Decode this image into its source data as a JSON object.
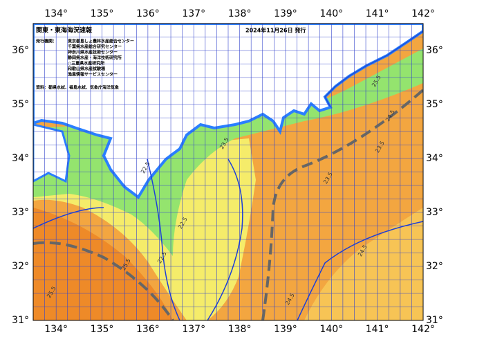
{
  "header": {
    "title": "関東・東海海況速報",
    "date": "2024年11月26日 発行",
    "issuer_label": "発行機関：",
    "issuers": [
      "東京都島しょ農林水産総合センター",
      "千葉県水産総合研究センター",
      "神奈川県水産技術センター",
      "静岡県水産・海洋技術研究所",
      "○三重県水産研究所",
      "和歌山県水産試験場",
      "漁業情報サービスセンター"
    ],
    "source": "資料：都県水試、福島水試、気象庁海洋気象"
  },
  "axes": {
    "longitude_labels": [
      "134°",
      "135°",
      "136°",
      "137°",
      "138°",
      "139°",
      "140°",
      "141°",
      "142°"
    ],
    "latitude_labels": [
      "36°",
      "35°",
      "34°",
      "33°",
      "32°",
      "31°"
    ]
  },
  "contour_labels": [
    "23.5",
    "22.5",
    "24.5",
    "25.5",
    "22.5",
    "23.5",
    "24.5",
    "25.5",
    "23.5",
    "24.5",
    "22.5",
    "25.5"
  ]
}
